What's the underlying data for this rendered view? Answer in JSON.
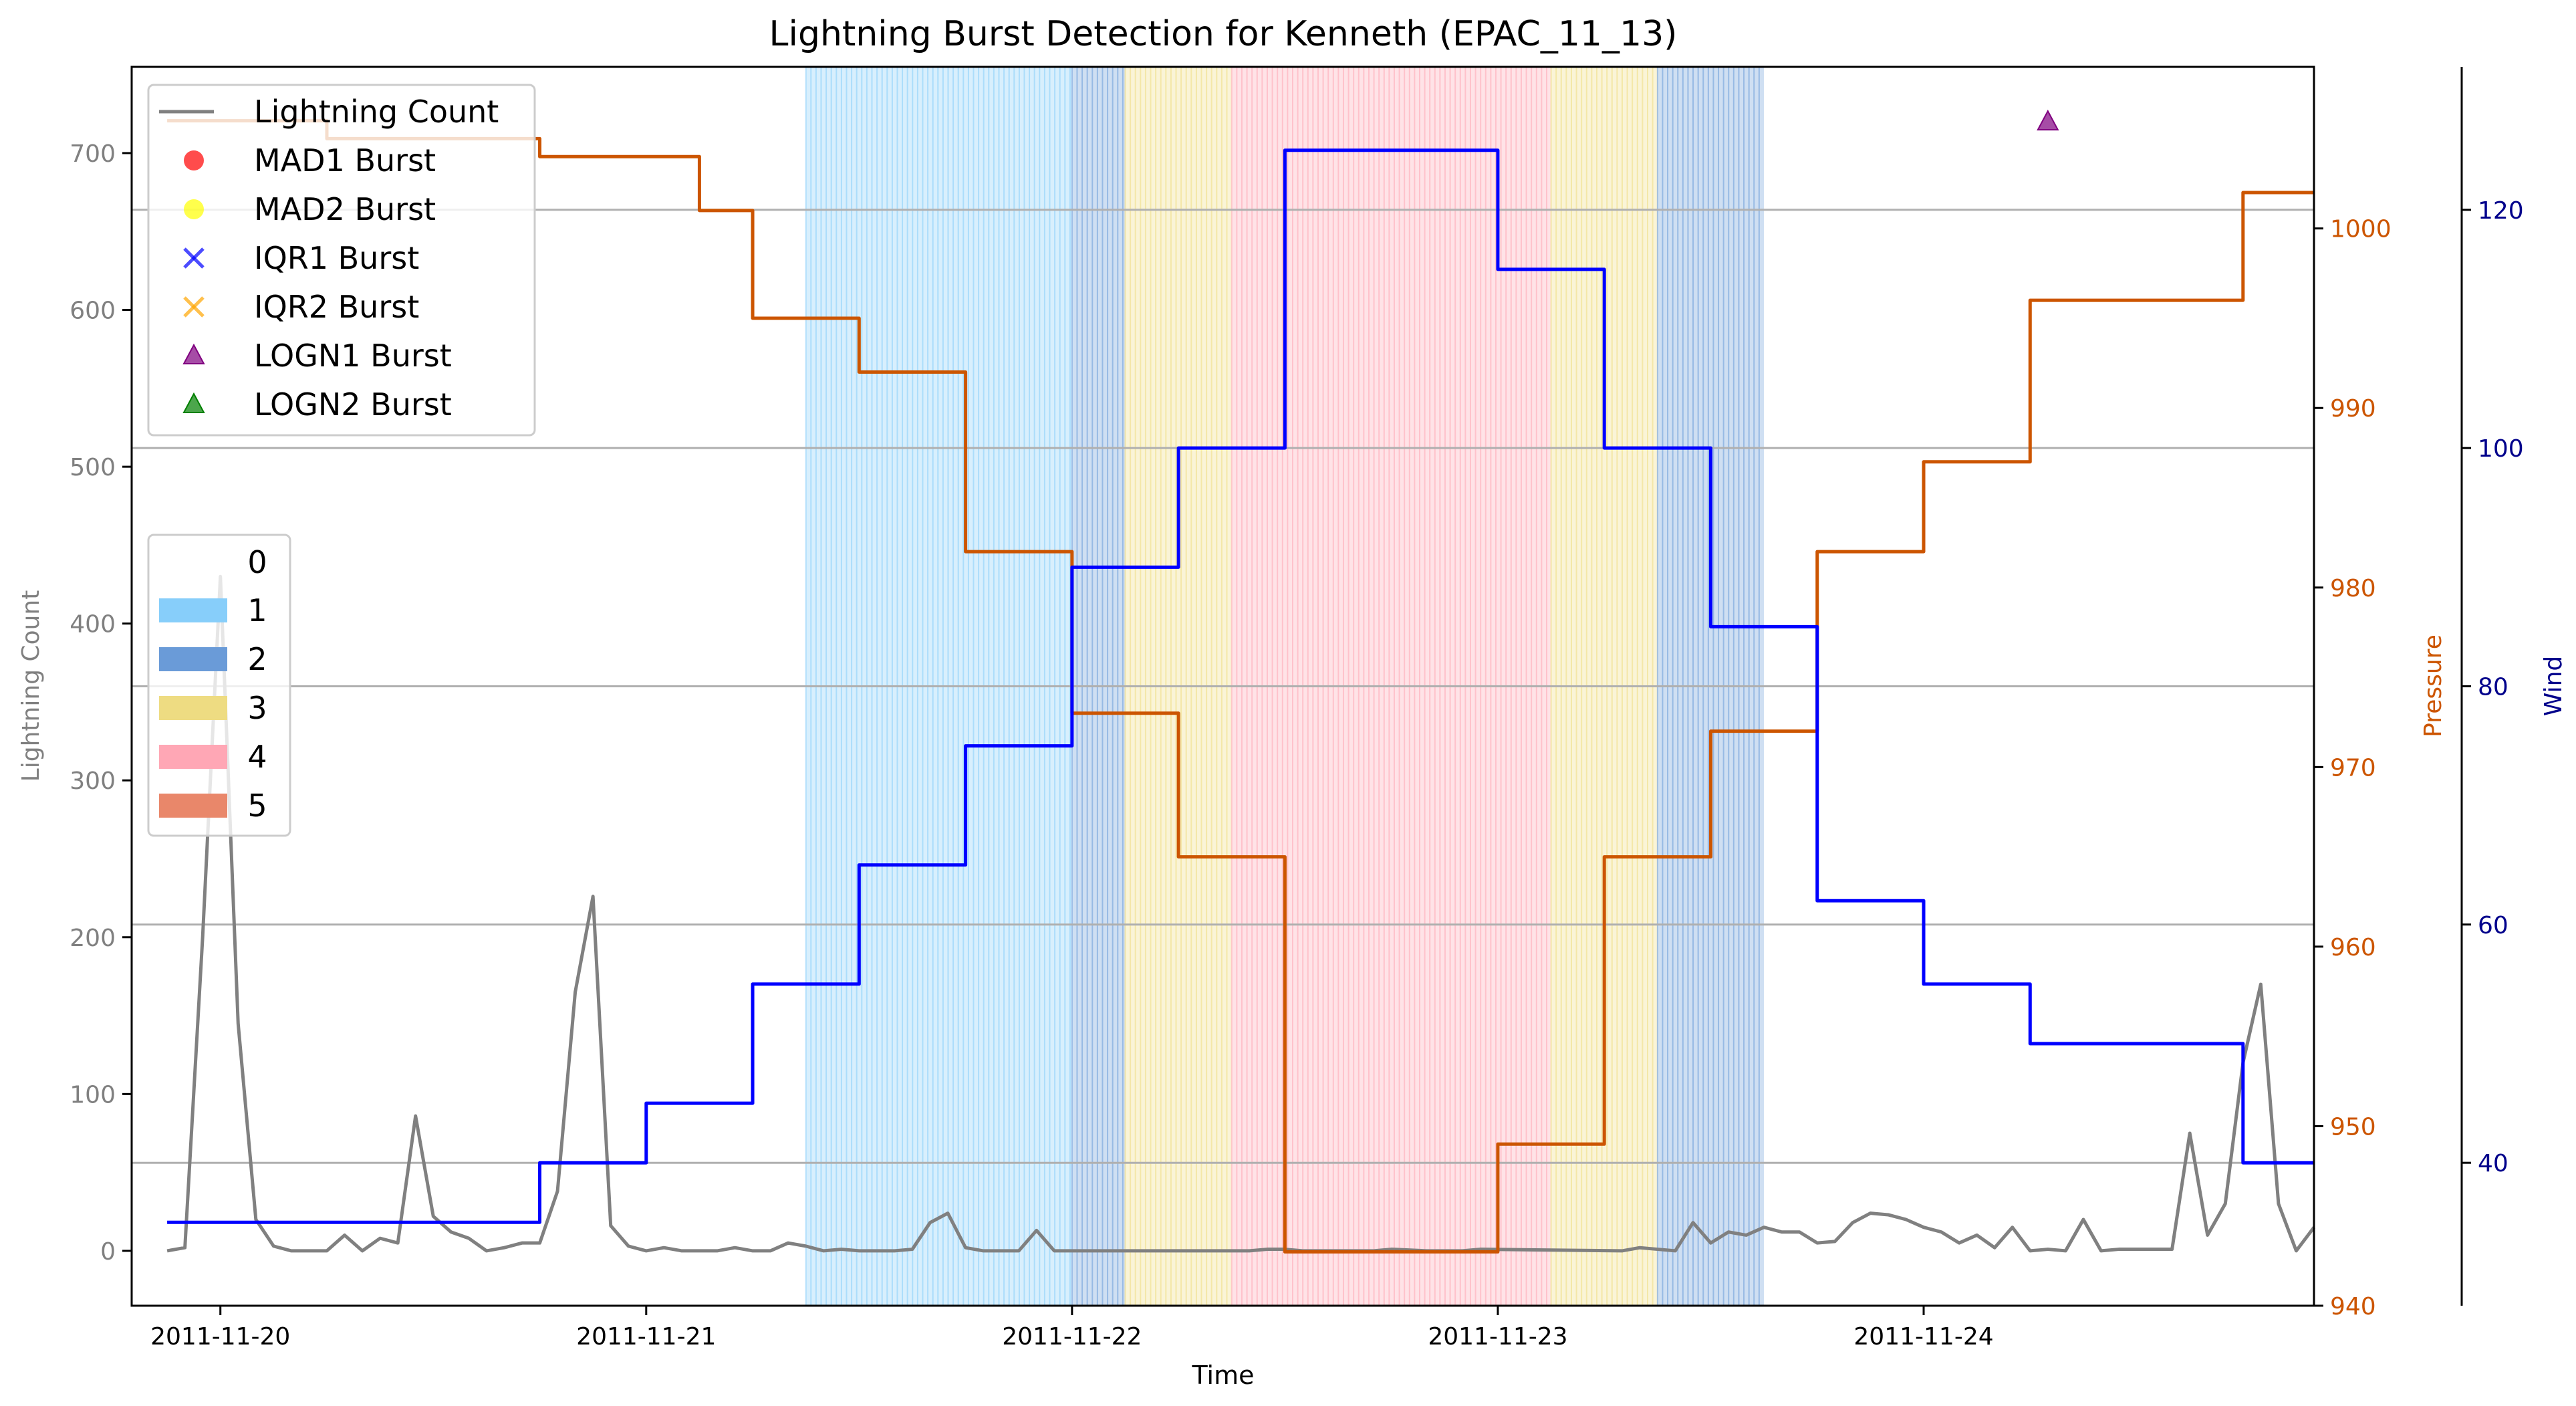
{
  "chart_data": {
    "type": "line",
    "title": "Lightning Burst Detection for Kenneth (EPAC_11_13)",
    "xlabel": "Time",
    "x_ticks": [
      "2011-11-20",
      "2011-11-21",
      "2011-11-22",
      "2011-11-23",
      "2011-11-24"
    ],
    "x_range": [
      "2011-11-19T19:00",
      "2011-11-24T22:00"
    ],
    "axes": [
      {
        "side": "left",
        "label": "Lightning Count",
        "color": "#808080",
        "range": [
          -35,
          755
        ],
        "ticks": [
          0,
          100,
          200,
          300,
          400,
          500,
          600,
          700
        ]
      },
      {
        "side": "right",
        "label": "Pressure",
        "color": "#CC5500",
        "range": [
          940,
          1009
        ],
        "ticks": [
          940,
          950,
          960,
          970,
          980,
          990,
          1000
        ]
      },
      {
        "side": "right-outer",
        "label": "Wind",
        "color": "#00008B",
        "range": [
          28,
          132
        ],
        "ticks": [
          40,
          60,
          80,
          100,
          120
        ]
      }
    ],
    "category_legend": {
      "title": "0",
      "entries": [
        {
          "label": "1",
          "color": "#87CEFA"
        },
        {
          "label": "2",
          "color": "#6A9BD8"
        },
        {
          "label": "3",
          "color": "#EEDC82"
        },
        {
          "label": "4",
          "color": "#FFA7B5"
        },
        {
          "label": "5",
          "color": "#E9876A"
        }
      ]
    },
    "category_spans": [
      {
        "category": 1,
        "start": "2011-11-21T09:00",
        "end": "2011-11-22T00:00"
      },
      {
        "category": 2,
        "start": "2011-11-22T00:00",
        "end": "2011-11-22T03:00"
      },
      {
        "category": 3,
        "start": "2011-11-22T03:00",
        "end": "2011-11-22T09:00"
      },
      {
        "category": 4,
        "start": "2011-11-22T09:00",
        "end": "2011-11-23T03:00"
      },
      {
        "category": 3,
        "start": "2011-11-23T03:00",
        "end": "2011-11-23T09:00"
      },
      {
        "category": 2,
        "start": "2011-11-23T09:00",
        "end": "2011-11-23T15:00"
      }
    ],
    "legend": [
      {
        "label": "Lightning Count",
        "marker": "line",
        "color": "#808080"
      },
      {
        "label": "MAD1 Burst",
        "marker": "circle",
        "color": "#FF0000"
      },
      {
        "label": "MAD2 Burst",
        "marker": "circle",
        "color": "#FFFF00"
      },
      {
        "label": "IQR1 Burst",
        "marker": "x",
        "color": "#0000FF"
      },
      {
        "label": "IQR2 Burst",
        "marker": "x",
        "color": "#FFA500"
      },
      {
        "label": "LOGN1 Burst",
        "marker": "triangle",
        "color": "#800080"
      },
      {
        "label": "LOGN2 Burst",
        "marker": "triangle",
        "color": "#008000"
      }
    ],
    "series": [
      {
        "name": "Lightning Count",
        "axis": "left",
        "color": "#808080",
        "points": [
          [
            "2011-11-19T21:00",
            0
          ],
          [
            "2011-11-19T22:00",
            2
          ],
          [
            "2011-11-19T23:00",
            200
          ],
          [
            "2011-11-20T00:00",
            430
          ],
          [
            "2011-11-20T01:00",
            145
          ],
          [
            "2011-11-20T02:00",
            20
          ],
          [
            "2011-11-20T03:00",
            3
          ],
          [
            "2011-11-20T04:00",
            0
          ],
          [
            "2011-11-20T06:00",
            0
          ],
          [
            "2011-11-20T07:00",
            10
          ],
          [
            "2011-11-20T08:00",
            0
          ],
          [
            "2011-11-20T09:00",
            8
          ],
          [
            "2011-11-20T10:00",
            5
          ],
          [
            "2011-11-20T11:00",
            86
          ],
          [
            "2011-11-20T12:00",
            22
          ],
          [
            "2011-11-20T13:00",
            12
          ],
          [
            "2011-11-20T14:00",
            8
          ],
          [
            "2011-11-20T15:00",
            0
          ],
          [
            "2011-11-20T16:00",
            2
          ],
          [
            "2011-11-20T17:00",
            5
          ],
          [
            "2011-11-20T18:00",
            5
          ],
          [
            "2011-11-20T19:00",
            38
          ],
          [
            "2011-11-20T20:00",
            165
          ],
          [
            "2011-11-20T21:00",
            226
          ],
          [
            "2011-11-20T22:00",
            16
          ],
          [
            "2011-11-20T23:00",
            3
          ],
          [
            "2011-11-21T00:00",
            0
          ],
          [
            "2011-11-21T01:00",
            2
          ],
          [
            "2011-11-21T02:00",
            0
          ],
          [
            "2011-11-21T04:00",
            0
          ],
          [
            "2011-11-21T05:00",
            2
          ],
          [
            "2011-11-21T06:00",
            0
          ],
          [
            "2011-11-21T07:00",
            0
          ],
          [
            "2011-11-21T08:00",
            5
          ],
          [
            "2011-11-21T09:00",
            3
          ],
          [
            "2011-11-21T10:00",
            0
          ],
          [
            "2011-11-21T11:00",
            1
          ],
          [
            "2011-11-21T12:00",
            0
          ],
          [
            "2011-11-21T14:00",
            0
          ],
          [
            "2011-11-21T15:00",
            1
          ],
          [
            "2011-11-21T16:00",
            18
          ],
          [
            "2011-11-21T17:00",
            24
          ],
          [
            "2011-11-21T18:00",
            2
          ],
          [
            "2011-11-21T19:00",
            0
          ],
          [
            "2011-11-21T21:00",
            0
          ],
          [
            "2011-11-21T22:00",
            13
          ],
          [
            "2011-11-21T23:00",
            0
          ],
          [
            "2011-11-22T10:00",
            0
          ],
          [
            "2011-11-22T11:00",
            1
          ],
          [
            "2011-11-22T12:00",
            1
          ],
          [
            "2011-11-22T13:00",
            0
          ],
          [
            "2011-11-22T17:00",
            0
          ],
          [
            "2011-11-22T18:00",
            1
          ],
          [
            "2011-11-22T20:00",
            0
          ],
          [
            "2011-11-22T22:00",
            0
          ],
          [
            "2011-11-22T23:00",
            1
          ],
          [
            "2011-11-23T07:00",
            0
          ],
          [
            "2011-11-23T08:00",
            2
          ],
          [
            "2011-11-23T09:00",
            1
          ],
          [
            "2011-11-23T10:00",
            0
          ],
          [
            "2011-11-23T11:00",
            18
          ],
          [
            "2011-11-23T12:00",
            5
          ],
          [
            "2011-11-23T13:00",
            12
          ],
          [
            "2011-11-23T14:00",
            10
          ],
          [
            "2011-11-23T15:00",
            15
          ],
          [
            "2011-11-23T16:00",
            12
          ],
          [
            "2011-11-23T17:00",
            12
          ],
          [
            "2011-11-23T18:00",
            5
          ],
          [
            "2011-11-23T19:00",
            6
          ],
          [
            "2011-11-23T20:00",
            18
          ],
          [
            "2011-11-23T21:00",
            24
          ],
          [
            "2011-11-23T22:00",
            23
          ],
          [
            "2011-11-23T23:00",
            20
          ],
          [
            "2011-11-24T00:00",
            15
          ],
          [
            "2011-11-24T01:00",
            12
          ],
          [
            "2011-11-24T02:00",
            5
          ],
          [
            "2011-11-24T03:00",
            10
          ],
          [
            "2011-11-24T04:00",
            2
          ],
          [
            "2011-11-24T05:00",
            15
          ],
          [
            "2011-11-24T06:00",
            0
          ],
          [
            "2011-11-24T07:00",
            1
          ],
          [
            "2011-11-24T08:00",
            0
          ],
          [
            "2011-11-24T09:00",
            20
          ],
          [
            "2011-11-24T10:00",
            0
          ],
          [
            "2011-11-24T11:00",
            1
          ],
          [
            "2011-11-24T12:00",
            1
          ],
          [
            "2011-11-24T13:00",
            1
          ],
          [
            "2011-11-24T14:00",
            1
          ],
          [
            "2011-11-24T15:00",
            75
          ],
          [
            "2011-11-24T16:00",
            10
          ],
          [
            "2011-11-24T17:00",
            30
          ],
          [
            "2011-11-24T18:00",
            120
          ],
          [
            "2011-11-24T19:00",
            170
          ],
          [
            "2011-11-24T20:00",
            30
          ],
          [
            "2011-11-24T21:00",
            0
          ],
          [
            "2011-11-24T22:00",
            15
          ]
        ]
      },
      {
        "name": "Pressure",
        "axis": "right",
        "color": "#CC5500",
        "step": true,
        "points": [
          [
            "2011-11-19T21:00",
            1006
          ],
          [
            "2011-11-20T00:00",
            1006
          ],
          [
            "2011-11-20T06:00",
            1005
          ],
          [
            "2011-11-20T12:00",
            1005
          ],
          [
            "2011-11-20T18:00",
            1004
          ],
          [
            "2011-11-21T00:00",
            1004
          ],
          [
            "2011-11-21T03:00",
            1001
          ],
          [
            "2011-11-21T06:00",
            995
          ],
          [
            "2011-11-21T12:00",
            992
          ],
          [
            "2011-11-21T18:00",
            982
          ],
          [
            "2011-11-22T00:00",
            973
          ],
          [
            "2011-11-22T06:00",
            965
          ],
          [
            "2011-11-22T12:00",
            943
          ],
          [
            "2011-11-22T18:00",
            943
          ],
          [
            "2011-11-23T00:00",
            949
          ],
          [
            "2011-11-23T06:00",
            965
          ],
          [
            "2011-11-23T12:00",
            972
          ],
          [
            "2011-11-23T18:00",
            982
          ],
          [
            "2011-11-24T00:00",
            987
          ],
          [
            "2011-11-24T06:00",
            996
          ],
          [
            "2011-11-24T12:00",
            996
          ],
          [
            "2011-11-24T18:00",
            1002
          ],
          [
            "2011-11-24T22:00",
            1002
          ]
        ]
      },
      {
        "name": "Wind",
        "axis": "right-outer",
        "color": "#0000FF",
        "step": true,
        "points": [
          [
            "2011-11-19T21:00",
            35
          ],
          [
            "2011-11-20T00:00",
            35
          ],
          [
            "2011-11-20T06:00",
            35
          ],
          [
            "2011-11-20T12:00",
            35
          ],
          [
            "2011-11-20T18:00",
            40
          ],
          [
            "2011-11-21T00:00",
            45
          ],
          [
            "2011-11-21T06:00",
            55
          ],
          [
            "2011-11-21T12:00",
            65
          ],
          [
            "2011-11-21T18:00",
            75
          ],
          [
            "2011-11-22T00:00",
            90
          ],
          [
            "2011-11-22T06:00",
            100
          ],
          [
            "2011-11-22T12:00",
            125
          ],
          [
            "2011-11-22T18:00",
            125
          ],
          [
            "2011-11-23T00:00",
            115
          ],
          [
            "2011-11-23T06:00",
            100
          ],
          [
            "2011-11-23T12:00",
            85
          ],
          [
            "2011-11-23T18:00",
            62
          ],
          [
            "2011-11-24T00:00",
            55
          ],
          [
            "2011-11-24T06:00",
            50
          ],
          [
            "2011-11-24T12:00",
            50
          ],
          [
            "2011-11-24T18:00",
            40
          ],
          [
            "2011-11-24T22:00",
            40
          ]
        ]
      }
    ],
    "bursts": [
      {
        "method": "LOGN1",
        "time": "2011-11-24T07:00",
        "value": 720
      }
    ],
    "hgrid_values_wind": [
      40,
      60,
      80,
      100,
      120
    ]
  }
}
